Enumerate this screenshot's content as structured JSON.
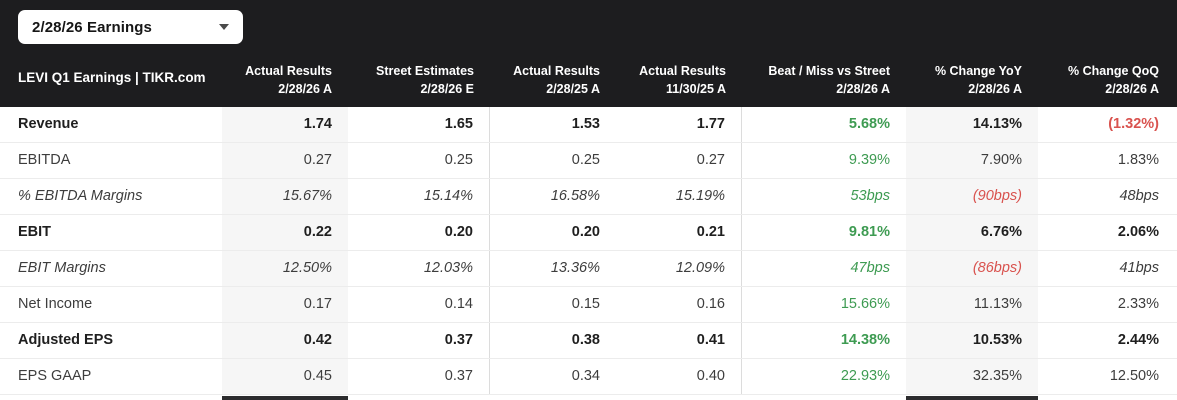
{
  "dropdown": {
    "label": "2/28/26 Earnings"
  },
  "table": {
    "corner_label": "LEVI Q1 Earnings | TIKR.com",
    "columns": [
      {
        "line1": "Actual Results",
        "line2": "2/28/26 A",
        "highlighted": true
      },
      {
        "line1": "Street Estimates",
        "line2": "2/28/26 E",
        "highlighted": false
      },
      {
        "line1": "Actual Results",
        "line2": "2/28/25 A",
        "highlighted": false
      },
      {
        "line1": "Actual Results",
        "line2": "11/30/25 A",
        "highlighted": false
      },
      {
        "line1": "Beat / Miss vs Street",
        "line2": "2/28/26 A",
        "highlighted": false
      },
      {
        "line1": "% Change YoY",
        "line2": "2/28/26 A",
        "highlighted": true
      },
      {
        "line1": "% Change QoQ",
        "line2": "2/28/26 A",
        "highlighted": false
      }
    ],
    "rows": [
      {
        "label": "Revenue",
        "emphasis": "bold",
        "cells": [
          {
            "text": "1.74",
            "tone": "default"
          },
          {
            "text": "1.65",
            "tone": "default"
          },
          {
            "text": "1.53",
            "tone": "default"
          },
          {
            "text": "1.77",
            "tone": "default"
          },
          {
            "text": "5.68%",
            "tone": "green"
          },
          {
            "text": "14.13%",
            "tone": "default"
          },
          {
            "text": "(1.32%)",
            "tone": "red"
          }
        ]
      },
      {
        "label": "EBITDA",
        "emphasis": "regular",
        "cells": [
          {
            "text": "0.27",
            "tone": "default"
          },
          {
            "text": "0.25",
            "tone": "default"
          },
          {
            "text": "0.25",
            "tone": "default"
          },
          {
            "text": "0.27",
            "tone": "default"
          },
          {
            "text": "9.39%",
            "tone": "green"
          },
          {
            "text": "7.90%",
            "tone": "default"
          },
          {
            "text": "1.83%",
            "tone": "default"
          }
        ]
      },
      {
        "label": "% EBITDA Margins",
        "emphasis": "italic",
        "cells": [
          {
            "text": "15.67%",
            "tone": "default"
          },
          {
            "text": "15.14%",
            "tone": "default"
          },
          {
            "text": "16.58%",
            "tone": "default"
          },
          {
            "text": "15.19%",
            "tone": "default"
          },
          {
            "text": "53bps",
            "tone": "green"
          },
          {
            "text": "(90bps)",
            "tone": "red"
          },
          {
            "text": "48bps",
            "tone": "default"
          }
        ]
      },
      {
        "label": "EBIT",
        "emphasis": "bold",
        "cells": [
          {
            "text": "0.22",
            "tone": "default"
          },
          {
            "text": "0.20",
            "tone": "default"
          },
          {
            "text": "0.20",
            "tone": "default"
          },
          {
            "text": "0.21",
            "tone": "default"
          },
          {
            "text": "9.81%",
            "tone": "green"
          },
          {
            "text": "6.76%",
            "tone": "default"
          },
          {
            "text": "2.06%",
            "tone": "default"
          }
        ]
      },
      {
        "label": "EBIT Margins",
        "emphasis": "italic",
        "cells": [
          {
            "text": "12.50%",
            "tone": "default"
          },
          {
            "text": "12.03%",
            "tone": "default"
          },
          {
            "text": "13.36%",
            "tone": "default"
          },
          {
            "text": "12.09%",
            "tone": "default"
          },
          {
            "text": "47bps",
            "tone": "green"
          },
          {
            "text": "(86bps)",
            "tone": "red"
          },
          {
            "text": "41bps",
            "tone": "default"
          }
        ]
      },
      {
        "label": "Net Income",
        "emphasis": "regular",
        "cells": [
          {
            "text": "0.17",
            "tone": "default"
          },
          {
            "text": "0.14",
            "tone": "default"
          },
          {
            "text": "0.15",
            "tone": "default"
          },
          {
            "text": "0.16",
            "tone": "default"
          },
          {
            "text": "15.66%",
            "tone": "green"
          },
          {
            "text": "11.13%",
            "tone": "default"
          },
          {
            "text": "2.33%",
            "tone": "default"
          }
        ]
      },
      {
        "label": "Adjusted EPS",
        "emphasis": "bold",
        "cells": [
          {
            "text": "0.42",
            "tone": "default"
          },
          {
            "text": "0.37",
            "tone": "default"
          },
          {
            "text": "0.38",
            "tone": "default"
          },
          {
            "text": "0.41",
            "tone": "default"
          },
          {
            "text": "14.38%",
            "tone": "green"
          },
          {
            "text": "10.53%",
            "tone": "default"
          },
          {
            "text": "2.44%",
            "tone": "default"
          }
        ]
      },
      {
        "label": "EPS GAAP",
        "emphasis": "regular",
        "cells": [
          {
            "text": "0.45",
            "tone": "default"
          },
          {
            "text": "0.37",
            "tone": "default"
          },
          {
            "text": "0.34",
            "tone": "default"
          },
          {
            "text": "0.40",
            "tone": "default"
          },
          {
            "text": "22.93%",
            "tone": "green"
          },
          {
            "text": "32.35%",
            "tone": "default"
          },
          {
            "text": "12.50%",
            "tone": "default"
          }
        ]
      }
    ]
  },
  "colors": {
    "header_background": "#1d1d1f",
    "positive_green": "#3e9b52",
    "negative_red": "#d9534f",
    "highlight_column": "#f6f6f6"
  }
}
